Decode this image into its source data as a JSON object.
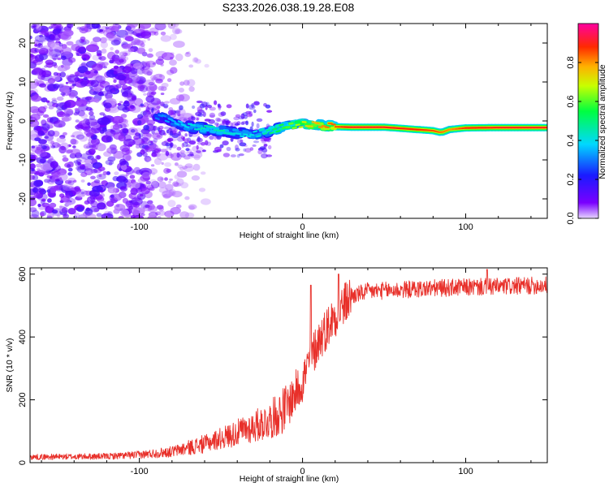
{
  "title": "S233.2026.038.19.28.E08",
  "colors": {
    "noise_dark": "#5a00e6",
    "noise_light": "#d8c8ff",
    "snr_line": "#e8302a",
    "colorbar": [
      "#e6d6ff",
      "#7a00ff",
      "#1a1aff",
      "#00d8ff",
      "#00ff40",
      "#c8ff00",
      "#ffb000",
      "#ff2a00",
      "#ff00a0"
    ]
  },
  "spectrogram": {
    "chart_data": {
      "type": "heatmap",
      "title": "",
      "xlabel": "Height of straight line (km)",
      "ylabel": "Frequency (Hz)",
      "xlim": [
        -167,
        150
      ],
      "ylim": [
        -25,
        25
      ],
      "xticks": [
        -100,
        0,
        100
      ],
      "xtick_labels": [
        "-100",
        "0",
        "100"
      ],
      "yticks": [
        -20,
        -10,
        0,
        10,
        20
      ],
      "ytick_labels": [
        "-20",
        "-10",
        "0",
        "10",
        "20"
      ],
      "ridge": {
        "x": [
          -90,
          -80,
          -70,
          -60,
          -50,
          -40,
          -30,
          -20,
          -10,
          0,
          10,
          20,
          30,
          50,
          70,
          80,
          85,
          90,
          100,
          120,
          150
        ],
        "frequency": [
          1.5,
          0,
          -1.5,
          -2,
          -2.5,
          -3,
          -3.5,
          -2.5,
          -1.5,
          -0.8,
          -1.2,
          -1.5,
          -1.6,
          -1.6,
          -2.2,
          -2.5,
          -3,
          -2.2,
          -1.8,
          -1.7,
          -1.7
        ],
        "amplitude": [
          0.3,
          0.35,
          0.4,
          0.45,
          0.45,
          0.4,
          0.4,
          0.5,
          0.6,
          0.7,
          0.8,
          0.85,
          0.9,
          0.9,
          0.88,
          0.85,
          0.82,
          0.8,
          0.88,
          0.9,
          0.9
        ]
      },
      "noise_region_x": [
        -167,
        -90
      ]
    }
  },
  "colorbar": {
    "label": "Normalized spectral amplitude",
    "range": [
      0,
      1
    ],
    "ticks": [
      0.0,
      0.2,
      0.4,
      0.6,
      0.8
    ],
    "tick_labels": [
      "0.0",
      "0.2",
      "0.4",
      "0.6",
      "0.8"
    ]
  },
  "snr": {
    "chart_data": {
      "type": "line",
      "title": "",
      "xlabel": "Height of straight line (km)",
      "ylabel": "SNR (10 * v/v)",
      "xlim": [
        -167,
        150
      ],
      "ylim": [
        0,
        620
      ],
      "xticks": [
        -100,
        0,
        100
      ],
      "xtick_labels": [
        "-100",
        "0",
        "100"
      ],
      "yticks": [
        0,
        200,
        400,
        600
      ],
      "ytick_labels": [
        "0",
        "200",
        "400",
        "600"
      ],
      "series": [
        {
          "name": "SNR",
          "trend_x": [
            -167,
            -120,
            -100,
            -80,
            -60,
            -40,
            -20,
            -10,
            0,
            5,
            10,
            15,
            20,
            25,
            30,
            40,
            60,
            80,
            100,
            120,
            150
          ],
          "trend_y": [
            18,
            20,
            25,
            35,
            60,
            95,
            135,
            175,
            260,
            330,
            390,
            430,
            470,
            500,
            530,
            545,
            550,
            555,
            558,
            560,
            565
          ],
          "peaks_x": [
            5,
            22,
            113
          ],
          "peaks_y": [
            565,
            600,
            615
          ]
        }
      ]
    }
  }
}
